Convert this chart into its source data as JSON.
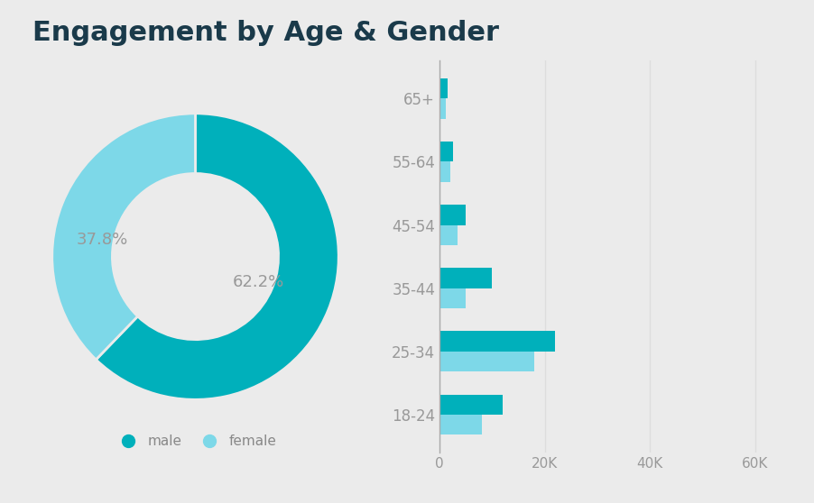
{
  "title": "Engagement by Age & Gender",
  "title_color": "#1a3a4a",
  "background_color": "#ebebeb",
  "donut": {
    "male_pct": 62.2,
    "female_pct": 37.8,
    "male_color": "#00b0bb",
    "female_color": "#7dd8e8",
    "label_color": "#999999",
    "label_fontsize": 13
  },
  "bar": {
    "age_groups": [
      "18-24",
      "25-34",
      "35-44",
      "45-54",
      "55-64",
      "65+"
    ],
    "male_values": [
      12000,
      22000,
      10000,
      5000,
      2500,
      1500
    ],
    "female_values": [
      8000,
      18000,
      5000,
      3500,
      2000,
      1200
    ],
    "male_color": "#00b0bb",
    "female_color": "#7dd8e8",
    "xlim": [
      0,
      65000
    ],
    "xticks": [
      0,
      20000,
      40000,
      60000
    ],
    "xtick_labels": [
      "0",
      "20K",
      "40K",
      "60K"
    ],
    "tick_label_color": "#999999",
    "axis_line_color": "#aaaaaa",
    "grid_color": "#dddddd"
  },
  "legend": {
    "male_label": "male",
    "female_label": "female",
    "marker_color_male": "#00b0bb",
    "marker_color_female": "#7dd8e8",
    "fontsize": 11,
    "text_color": "#888888"
  }
}
